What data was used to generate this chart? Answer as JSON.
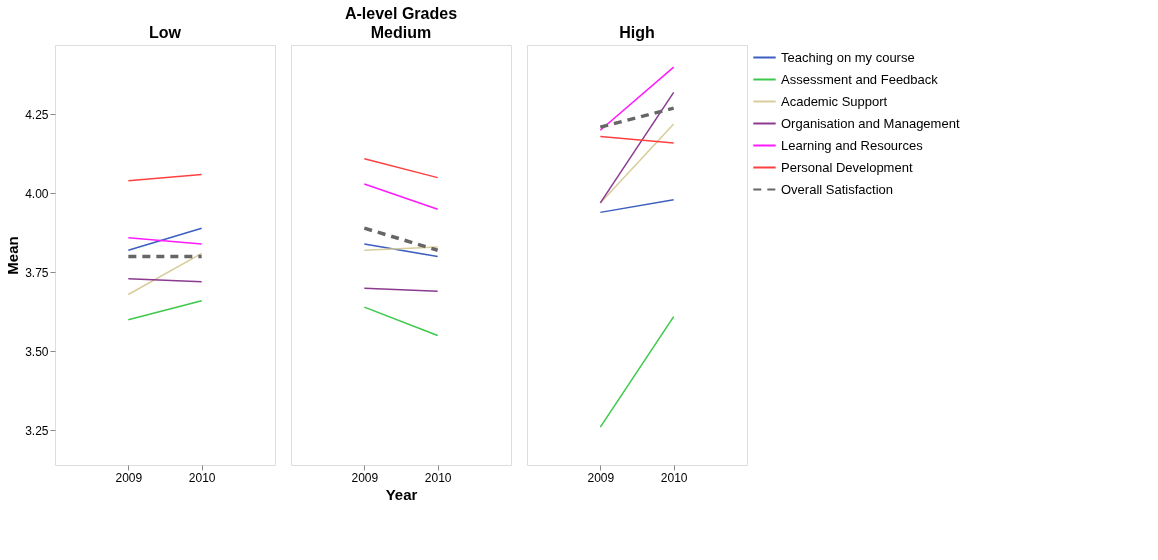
{
  "chart_data": [
    {
      "type": "line",
      "subtitle": "Low",
      "ylabel": "Mean",
      "categories": [
        "2009",
        "2010"
      ],
      "ylim": [
        3.14,
        4.47
      ],
      "legend": "top right",
      "yticks": [
        {
          "value": 3.25,
          "label": "3.25"
        },
        {
          "value": 3.5,
          "label": "3.50"
        },
        {
          "value": 3.75,
          "label": "3.75"
        },
        {
          "value": 4,
          "label": "4.00"
        },
        {
          "value": 4.25,
          "label": "4.25"
        }
      ],
      "grid": false,
      "series": [
        {
          "name": "Teaching on my course",
          "color": "#3b5fc0",
          "values": [
            3.82,
            3.89
          ]
        },
        {
          "name": "Assessment and Feedback",
          "color": "#3cc84a",
          "values": [
            3.6,
            3.66
          ]
        },
        {
          "name": "Academic Support",
          "color": "#d8cc9a",
          "values": [
            3.68,
            3.81
          ]
        },
        {
          "name": "Organisation and Management",
          "color": "#8b3a8f",
          "values": [
            3.73,
            3.72
          ]
        },
        {
          "name": "Learning and Resources",
          "color": "#ff19ff",
          "values": [
            3.86,
            3.84
          ]
        },
        {
          "name": "Personal Development",
          "color": "#ff4040",
          "values": [
            4.04,
            4.06
          ]
        },
        {
          "name": "Overall Satisfaction",
          "color": "#666666",
          "line_style": "dashed",
          "values": [
            3.8,
            3.8
          ]
        }
      ]
    },
    {
      "type": "line",
      "title": "A-level Grades",
      "subtitle": "Medium",
      "xlabel": "Year",
      "categories": [
        "2009",
        "2010"
      ],
      "ylim": [
        3.14,
        4.47
      ],
      "tick_labels": "x",
      "grid": false,
      "legend": "top right",
      "series": [
        {
          "name": "Teaching on my course",
          "color": "#3b5fc0",
          "values": [
            3.84,
            3.8
          ]
        },
        {
          "name": "Assessment and Feedback",
          "color": "#3cc84a",
          "values": [
            3.64,
            3.55
          ]
        },
        {
          "name": "Academic Support",
          "color": "#d8cc9a",
          "values": [
            3.82,
            3.83
          ]
        },
        {
          "name": "Organisation and Management",
          "color": "#8b3a8f",
          "values": [
            3.7,
            3.69
          ]
        },
        {
          "name": "Learning and Resources",
          "color": "#ff19ff",
          "values": [
            4.03,
            3.95
          ]
        },
        {
          "name": "Personal Development",
          "color": "#ff4040",
          "values": [
            4.11,
            4.05
          ]
        },
        {
          "name": "Overall Satisfaction",
          "color": "#666666",
          "line_style": "dashed",
          "values": [
            3.89,
            3.82
          ]
        }
      ]
    },
    {
      "type": "line",
      "subtitle": "High",
      "categories": [
        "2009",
        "2010"
      ],
      "ylim": [
        3.14,
        4.47
      ],
      "tick_labels": "x",
      "grid": false,
      "legend": "top right",
      "series": [
        {
          "name": "Teaching on my course",
          "color": "#3b5fc0",
          "values": [
            3.94,
            3.98
          ]
        },
        {
          "name": "Assessment and Feedback",
          "color": "#3cc84a",
          "values": [
            3.26,
            3.61
          ]
        },
        {
          "name": "Academic Support",
          "color": "#d8cc9a",
          "values": [
            3.97,
            4.22
          ]
        },
        {
          "name": "Organisation and Management",
          "color": "#8b3a8f",
          "values": [
            3.97,
            4.32
          ]
        },
        {
          "name": "Learning and Resources",
          "color": "#ff19ff",
          "values": [
            4.2,
            4.4
          ]
        },
        {
          "name": "Personal Development",
          "color": "#ff4040",
          "values": [
            4.18,
            4.16
          ]
        },
        {
          "name": "Overall Satisfaction",
          "color": "#666666",
          "line_style": "dashed",
          "values": [
            4.21,
            4.27
          ]
        }
      ]
    }
  ]
}
